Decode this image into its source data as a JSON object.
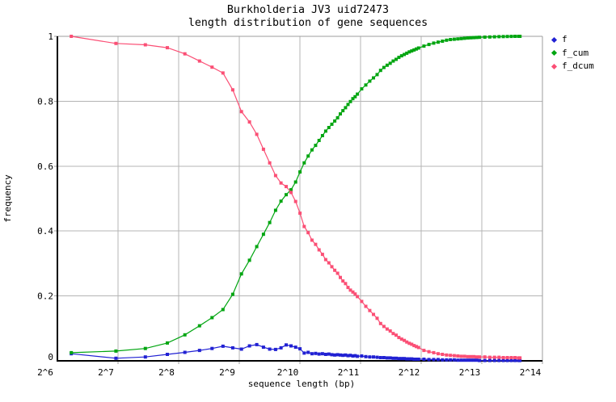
{
  "header": {
    "title": "Burkholderia JV3 uid72473",
    "subtitle": "length distribution of gene sequences"
  },
  "legend": {
    "items": [
      {
        "label": "f",
        "color": "#2121d3"
      },
      {
        "label": "f_cum",
        "color": "#00a510"
      },
      {
        "label": "f_dcum",
        "color": "#fb4f75"
      }
    ]
  },
  "colors": {
    "f": "#2121d3",
    "f_cum": "#00a510",
    "f_dcum": "#fb4f75",
    "grid": "#b4b4b4",
    "border": "#9e9e9e",
    "axis": "#000000",
    "background": "#ffffff"
  },
  "chart_data": {
    "type": "line",
    "title": "Burkholderia JV3 uid72473",
    "subtitle": "length distribution of gene sequences",
    "xlabel": "sequence length (bp)",
    "ylabel": "frequency",
    "x_scale": "log2",
    "xlim_log2": [
      6,
      14
    ],
    "ylim": [
      0,
      1
    ],
    "grid": true,
    "legend_position": "outside-top-right",
    "x_ticks": [
      {
        "label": "2^6",
        "exp": 6
      },
      {
        "label": "2^7",
        "exp": 7
      },
      {
        "label": "2^8",
        "exp": 8
      },
      {
        "label": "2^9",
        "exp": 9
      },
      {
        "label": "2^10",
        "exp": 10
      },
      {
        "label": "2^11",
        "exp": 11
      },
      {
        "label": "2^12",
        "exp": 12
      },
      {
        "label": "2^13",
        "exp": 13
      },
      {
        "label": "2^14",
        "exp": 14
      }
    ],
    "y_ticks": [
      {
        "label": "0",
        "value": 0
      },
      {
        "label": "0.2",
        "value": 0.2
      },
      {
        "label": "0.4",
        "value": 0.4
      },
      {
        "label": "0.6",
        "value": 0.6
      },
      {
        "label": "0.8",
        "value": 0.8
      },
      {
        "label": "1",
        "value": 1
      }
    ],
    "x_bp": [
      75,
      125,
      175,
      225,
      275,
      325,
      375,
      425,
      475,
      525,
      575,
      625,
      675,
      725,
      775,
      825,
      875,
      925,
      975,
      1025,
      1075,
      1125,
      1175,
      1225,
      1275,
      1325,
      1375,
      1425,
      1475,
      1525,
      1575,
      1625,
      1675,
      1725,
      1775,
      1825,
      1875,
      1925,
      1975,
      2075,
      2175,
      2275,
      2375,
      2475,
      2575,
      2675,
      2775,
      2875,
      2975,
      3075,
      3175,
      3275,
      3375,
      3475,
      3575,
      3675,
      3775,
      3875,
      3975,
      4225,
      4475,
      4725,
      4975,
      5225,
      5475,
      5725,
      5975,
      6225,
      6475,
      6725,
      6975,
      7225,
      7475,
      7725,
      7975,
      8475,
      8975,
      9475,
      9975,
      10475,
      10975,
      11475,
      11975,
      12475,
      12675
    ],
    "series": [
      {
        "name": "f",
        "color": "#2121d3",
        "values": [
          0.022,
          0.008,
          0.012,
          0.02,
          0.026,
          0.032,
          0.038,
          0.045,
          0.04,
          0.036,
          0.046,
          0.05,
          0.042,
          0.036,
          0.035,
          0.04,
          0.049,
          0.046,
          0.042,
          0.037,
          0.024,
          0.026,
          0.022,
          0.023,
          0.021,
          0.022,
          0.02,
          0.021,
          0.019,
          0.018,
          0.019,
          0.018,
          0.017,
          0.018,
          0.016,
          0.017,
          0.015,
          0.016,
          0.014,
          0.015,
          0.013,
          0.012,
          0.012,
          0.011,
          0.01,
          0.01,
          0.009,
          0.009,
          0.008,
          0.008,
          0.007,
          0.007,
          0.007,
          0.006,
          0.006,
          0.006,
          0.005,
          0.005,
          0.005,
          0.005,
          0.004,
          0.004,
          0.004,
          0.003,
          0.003,
          0.003,
          0.003,
          0.002,
          0.002,
          0.002,
          0.002,
          0.002,
          0.002,
          0.002,
          0.001,
          0.001,
          0.001,
          0.001,
          0.001,
          0.001,
          0.001,
          0.001,
          0.001,
          0.001,
          0.001
        ]
      },
      {
        "name": "f_cum",
        "color": "#00a510",
        "values": [
          0.025,
          0.03,
          0.038,
          0.055,
          0.08,
          0.108,
          0.133,
          0.158,
          0.205,
          0.268,
          0.31,
          0.352,
          0.39,
          0.426,
          0.464,
          0.492,
          0.512,
          0.527,
          0.551,
          0.582,
          0.61,
          0.631,
          0.65,
          0.664,
          0.679,
          0.694,
          0.708,
          0.719,
          0.729,
          0.739,
          0.749,
          0.761,
          0.771,
          0.78,
          0.79,
          0.799,
          0.808,
          0.814,
          0.822,
          0.838,
          0.85,
          0.862,
          0.872,
          0.882,
          0.895,
          0.904,
          0.911,
          0.917,
          0.924,
          0.929,
          0.935,
          0.94,
          0.944,
          0.948,
          0.952,
          0.955,
          0.958,
          0.961,
          0.964,
          0.97,
          0.975,
          0.979,
          0.982,
          0.985,
          0.988,
          0.99,
          0.991,
          0.992,
          0.993,
          0.994,
          0.995,
          0.9955,
          0.996,
          0.9965,
          0.997,
          0.9975,
          0.998,
          0.9985,
          0.999,
          0.9992,
          0.9995,
          0.9997,
          0.9999,
          1.0,
          1.0
        ]
      },
      {
        "name": "f_dcum",
        "color": "#fb4f75",
        "values": [
          1.0,
          0.978,
          0.974,
          0.965,
          0.946,
          0.924,
          0.905,
          0.887,
          0.835,
          0.768,
          0.736,
          0.698,
          0.652,
          0.61,
          0.571,
          0.548,
          0.537,
          0.519,
          0.491,
          0.455,
          0.414,
          0.395,
          0.372,
          0.359,
          0.342,
          0.328,
          0.312,
          0.302,
          0.29,
          0.279,
          0.27,
          0.257,
          0.246,
          0.238,
          0.226,
          0.218,
          0.212,
          0.206,
          0.198,
          0.183,
          0.168,
          0.155,
          0.143,
          0.131,
          0.115,
          0.106,
          0.098,
          0.092,
          0.084,
          0.079,
          0.072,
          0.067,
          0.063,
          0.058,
          0.054,
          0.051,
          0.047,
          0.044,
          0.041,
          0.032,
          0.028,
          0.025,
          0.022,
          0.02,
          0.018,
          0.017,
          0.016,
          0.015,
          0.014,
          0.014,
          0.013,
          0.013,
          0.013,
          0.012,
          0.012,
          0.012,
          0.011,
          0.011,
          0.011,
          0.01,
          0.01,
          0.01,
          0.01,
          0.009,
          0.009
        ]
      }
    ]
  }
}
